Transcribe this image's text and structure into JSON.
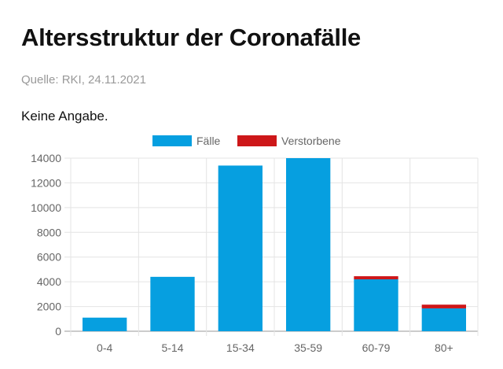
{
  "header": {
    "title": "Altersstruktur der Coronafälle",
    "source": "Quelle: RKI, 24.11.2021",
    "note": "Keine Angabe."
  },
  "colors": {
    "cases": "#069fe0",
    "deaths": "#cd1719"
  },
  "chart_data": {
    "type": "bar",
    "stacked": true,
    "categories": [
      "0-4",
      "5-14",
      "15-34",
      "35-59",
      "60-79",
      "80+"
    ],
    "series": [
      {
        "name": "Fälle",
        "values": [
          1100,
          4400,
          13400,
          14000,
          4200,
          1850
        ]
      },
      {
        "name": "Verstorbene",
        "values": [
          0,
          0,
          0,
          0,
          250,
          300
        ]
      }
    ],
    "yticks": [
      0,
      2000,
      4000,
      6000,
      8000,
      10000,
      12000,
      14000
    ],
    "ylim": [
      0,
      14000
    ],
    "legend": "top",
    "grid": true
  }
}
